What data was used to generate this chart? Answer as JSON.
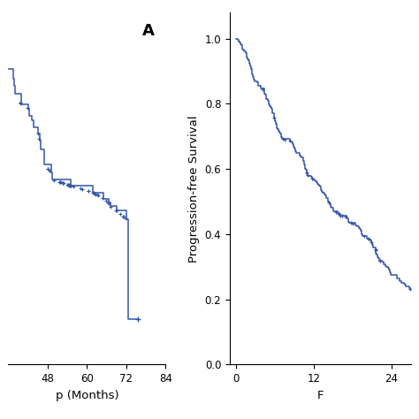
{
  "left_panel": {
    "label": "A",
    "xlim": [
      36,
      84
    ],
    "ylim": [
      0.15,
      0.46
    ],
    "xticks": [
      48,
      60,
      72,
      84
    ],
    "xlabel": "p (Months)",
    "ylabel": "",
    "curve_color": "#3355aa",
    "yticks": []
  },
  "right_panel": {
    "xlim": [
      -1,
      27
    ],
    "ylim": [
      0.0,
      1.08
    ],
    "xticks": [
      0,
      12,
      24
    ],
    "yticks": [
      0.0,
      0.2,
      0.4,
      0.6,
      0.8,
      1.0
    ],
    "xlabel": "F",
    "ylabel": "Progression-free Survival",
    "curve_color": "#3355aa"
  },
  "bg_color": "#ffffff",
  "line_width": 1.1,
  "tick_fontsize": 8.5,
  "label_fontsize": 9.5
}
